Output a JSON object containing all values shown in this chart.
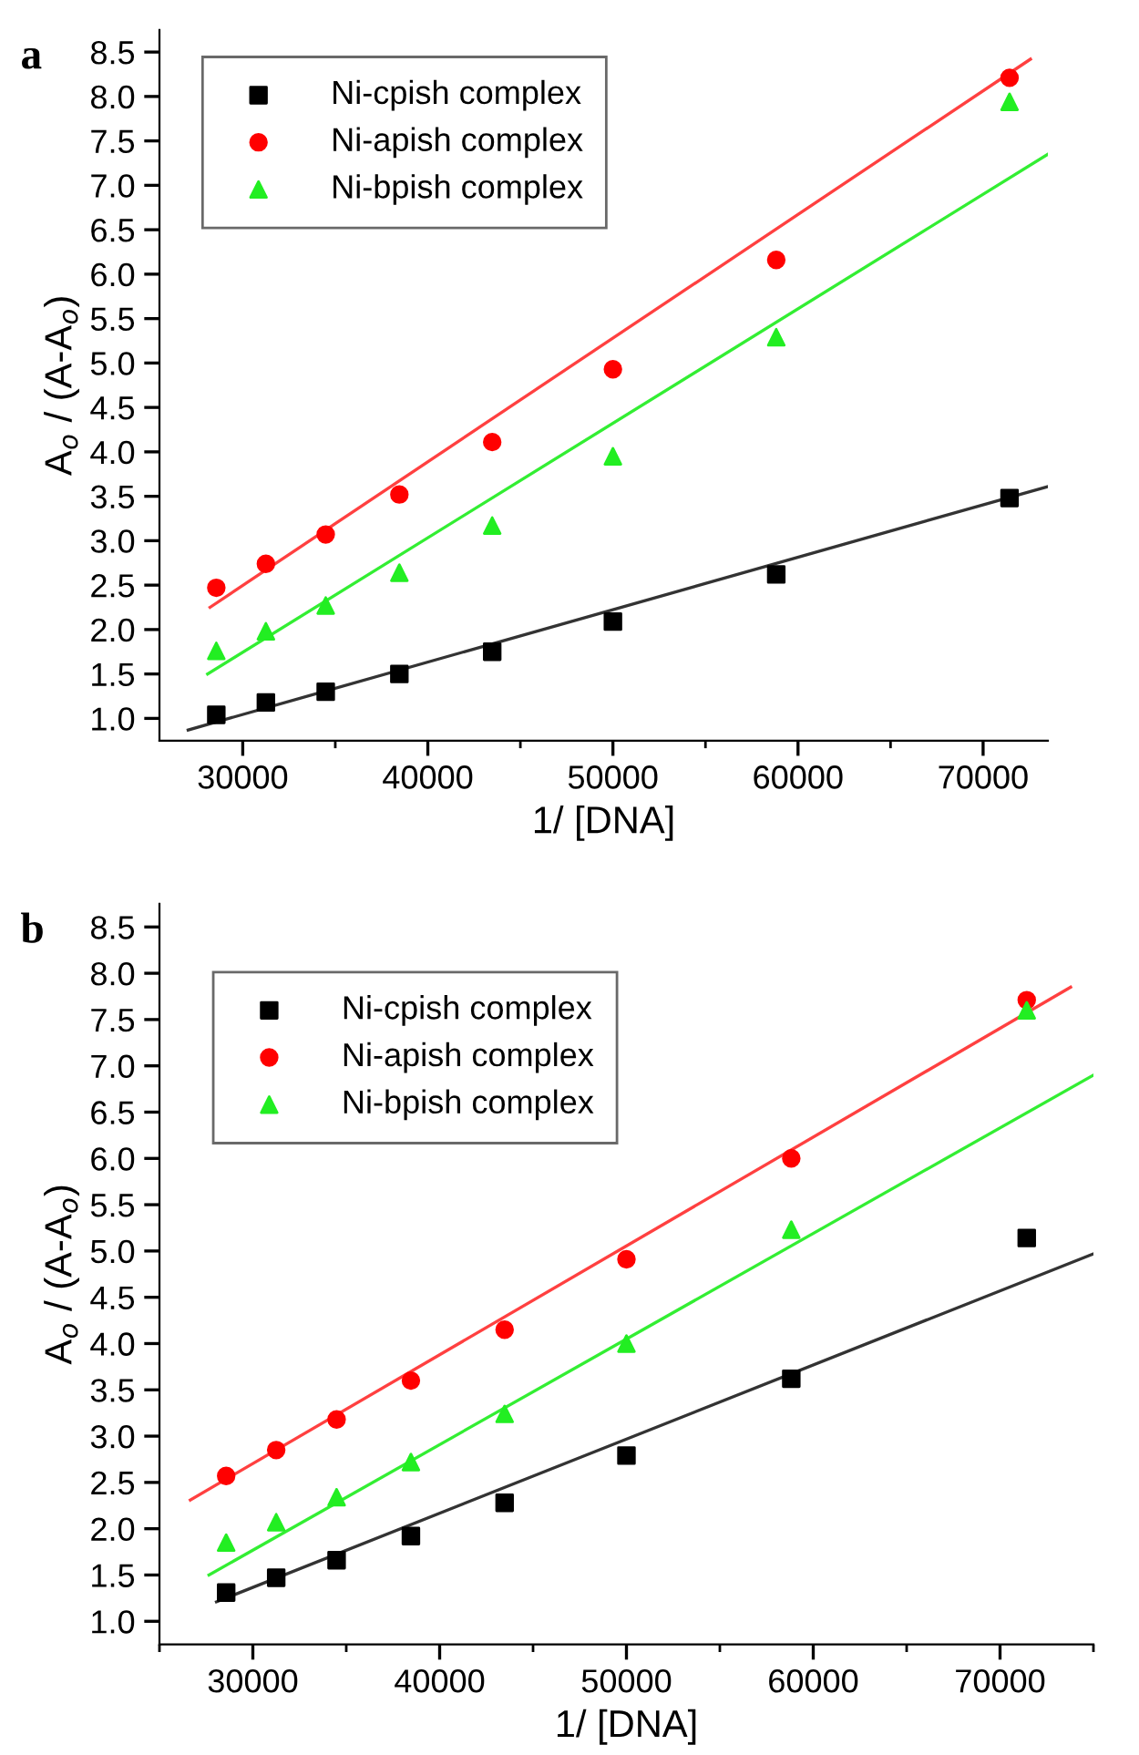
{
  "chart_data": [
    {
      "type": "scatter",
      "title": "a",
      "xlabel": "1/ [DNA]",
      "ylabel": "A$_{o}$ / (A-A$_{o}$)",
      "legend": "top left",
      "xlim": [
        25500,
        73500
      ],
      "ylim": [
        0.75,
        8.75
      ],
      "xticks": [
        30000,
        {
          "value": 35000,
          "label": null
        },
        40000,
        {
          "value": 45000,
          "label": null
        },
        50000,
        {
          "value": 55000,
          "label": null
        },
        60000,
        {
          "value": 65000,
          "label": null
        },
        70000
      ],
      "yticks": [
        {
          "value": 1,
          "label": "1.0"
        },
        {
          "value": 1.5,
          "label": "1.5"
        },
        {
          "value": 2,
          "label": "2.0"
        },
        {
          "value": 2.5,
          "label": "2.5"
        },
        {
          "value": 3,
          "label": "3.0"
        },
        {
          "value": 3.5,
          "label": "3.5"
        },
        {
          "value": 4,
          "label": "4.0"
        },
        {
          "value": 4.5,
          "label": "4.5"
        },
        {
          "value": 5,
          "label": "5.0"
        },
        {
          "value": 5.5,
          "label": "5.5"
        },
        {
          "value": 6,
          "label": "6.0"
        },
        {
          "value": 6.5,
          "label": "6.5"
        },
        {
          "value": 7,
          "label": "7.0"
        },
        {
          "value": 7.5,
          "label": "7.5"
        },
        {
          "value": 8,
          "label": "8.0"
        },
        {
          "value": 8.5,
          "label": "8.5"
        }
      ],
      "x": [
        28571,
        31250,
        34483,
        38462,
        43478,
        50000,
        58824,
        71429
      ],
      "series": [
        {
          "name": "Ni-cpish complex",
          "color": "#000000",
          "marker": "square",
          "values": [
            1.04,
            1.18,
            1.3,
            1.5,
            1.75,
            2.09,
            2.62,
            3.48
          ]
        },
        {
          "name": "Ni-apish complex",
          "color": "#ff0000",
          "marker": "circle",
          "values": [
            2.47,
            2.74,
            3.07,
            3.52,
            4.11,
            4.93,
            6.16,
            8.21
          ]
        },
        {
          "name": "Ni-bpish complex",
          "color": "#22ee22",
          "marker": "triangle",
          "values": [
            1.76,
            1.98,
            2.27,
            2.64,
            3.17,
            3.95,
            5.29,
            7.94
          ]
        },
        {
          "type": "line",
          "color": "#333333",
          "x": [
            27050,
            73500
          ],
          "values": [
            0.87,
            3.61
          ]
        },
        {
          "type": "line",
          "color": "#ff4040",
          "x": [
            28230,
            72560
          ],
          "values": [
            2.25,
            8.42
          ]
        },
        {
          "type": "line",
          "color": "#33ee33",
          "x": [
            28100,
            73500
          ],
          "values": [
            1.5,
            7.35
          ]
        }
      ]
    },
    {
      "type": "scatter",
      "title": "b",
      "xlabel": "1/ [DNA]",
      "ylabel": "A$_{o}$ / (A-A$_{o}$)",
      "legend": "top left",
      "xlim": [
        25000,
        75000
      ],
      "ylim": [
        0.75,
        8.75
      ],
      "xticks": [
        {
          "value": 25000,
          "label": null
        },
        30000,
        {
          "value": 35000,
          "label": null
        },
        40000,
        {
          "value": 45000,
          "label": null
        },
        50000,
        {
          "value": 55000,
          "label": null
        },
        60000,
        {
          "value": 65000,
          "label": null
        },
        70000,
        {
          "value": 75000,
          "label": null
        }
      ],
      "yticks": [
        {
          "value": 1,
          "label": "1.0"
        },
        {
          "value": 1.5,
          "label": "1.5"
        },
        {
          "value": 2,
          "label": "2.0"
        },
        {
          "value": 2.5,
          "label": "2.5"
        },
        {
          "value": 3,
          "label": "3.0"
        },
        {
          "value": 3.5,
          "label": "3.5"
        },
        {
          "value": 4,
          "label": "4.0"
        },
        {
          "value": 4.5,
          "label": "4.5"
        },
        {
          "value": 5,
          "label": "5.0"
        },
        {
          "value": 5.5,
          "label": "5.5"
        },
        {
          "value": 6,
          "label": "6.0"
        },
        {
          "value": 6.5,
          "label": "6.5"
        },
        {
          "value": 7,
          "label": "7.0"
        },
        {
          "value": 7.5,
          "label": "7.5"
        },
        {
          "value": 8,
          "label": "8.0"
        },
        {
          "value": 8.5,
          "label": "8.5"
        }
      ],
      "x": [
        28571,
        31250,
        34483,
        38462,
        43478,
        50000,
        58824,
        71429
      ],
      "series": [
        {
          "name": "Ni-cpish complex",
          "color": "#000000",
          "marker": "square",
          "values": [
            1.31,
            1.47,
            1.66,
            1.92,
            2.28,
            2.79,
            3.62,
            5.14
          ]
        },
        {
          "name": "Ni-apish complex",
          "color": "#ff0000",
          "marker": "circle",
          "values": [
            2.57,
            2.85,
            3.18,
            3.6,
            4.15,
            4.91,
            6.0,
            7.71
          ]
        },
        {
          "name": "Ni-bpish complex",
          "color": "#22ee22",
          "marker": "triangle",
          "values": [
            1.85,
            2.07,
            2.34,
            2.72,
            3.24,
            4.0,
            5.23,
            7.6
          ]
        },
        {
          "type": "line",
          "color": "#333333",
          "x": [
            28050,
            75000
          ],
          "values": [
            1.21,
            4.97
          ]
        },
        {
          "type": "line",
          "color": "#ff4040",
          "x": [
            26650,
            73780
          ],
          "values": [
            2.31,
            7.85
          ]
        },
        {
          "type": "line",
          "color": "#33ee33",
          "x": [
            27650,
            75000
          ],
          "values": [
            1.5,
            6.9
          ]
        }
      ]
    }
  ]
}
